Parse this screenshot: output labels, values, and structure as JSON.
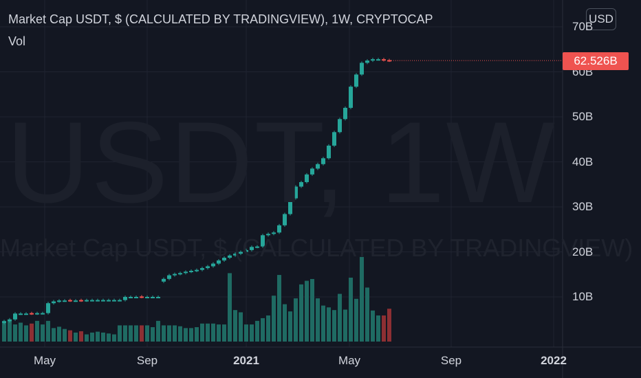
{
  "legend": {
    "title": "Market Cap USDT, $ (CALCULATED BY TRADINGVIEW), 1W, CRYPTOCAP",
    "volume_label": "Vol"
  },
  "watermark": {
    "symbol": "USDT, 1W",
    "description": "Market Cap USDT, $ (CALCULATED BY TRADINGVIEW)"
  },
  "currency_button": "USD",
  "last_price_label": "62.526B",
  "colors": {
    "background": "#131722",
    "up": "#26a69a",
    "down": "#ef5350",
    "vol_up": "#1f6b63",
    "vol_down": "#8d2f33",
    "grid": "#1f2330",
    "text": "#d1d4dc"
  },
  "chart_data": {
    "type": "candlestick",
    "interval": "1W",
    "y_axis": {
      "ticks": [
        "10B",
        "20B",
        "30B",
        "40B",
        "50B",
        "60B",
        "70B"
      ],
      "ylim": [
        0,
        72
      ],
      "unit": "B"
    },
    "x_axis": {
      "ticks": [
        {
          "label": "May",
          "bold": false
        },
        {
          "label": "Sep",
          "bold": false
        },
        {
          "label": "2021",
          "bold": true
        },
        {
          "label": "May",
          "bold": false
        },
        {
          "label": "Sep",
          "bold": false
        },
        {
          "label": "2022",
          "bold": true
        }
      ]
    },
    "grid": true,
    "close_values": [
      4.6,
      5.0,
      6.3,
      6.3,
      6.3,
      6.3,
      6.4,
      6.4,
      8.6,
      9.0,
      9.2,
      9.2,
      9.2,
      9.2,
      9.2,
      9.3,
      9.3,
      9.3,
      9.3,
      9.3,
      9.3,
      9.3,
      10.0,
      10.0,
      10.0,
      10.0,
      10.0,
      10.0,
      10.0,
      14.0,
      14.8,
      15.1,
      15.3,
      15.6,
      15.8,
      16.0,
      16.4,
      16.8,
      17.4,
      18.1,
      18.7,
      19.2,
      19.6,
      20.0,
      20.4,
      21.1,
      21.2,
      23.7,
      24.0,
      24.3,
      25.9,
      28.4,
      31.9,
      34.5,
      35.5,
      37.2,
      38.5,
      39.5,
      40.8,
      43.6,
      46.6,
      49.5,
      52.0,
      56.7,
      59.4,
      62.0,
      62.5,
      62.8,
      62.8,
      62.6,
      62.5
    ],
    "open_values": [
      4.2,
      4.6,
      5.0,
      6.3,
      6.3,
      6.4,
      6.3,
      6.4,
      6.4,
      8.6,
      9.0,
      9.2,
      9.3,
      9.2,
      9.3,
      9.2,
      9.3,
      9.3,
      9.3,
      9.3,
      9.3,
      9.3,
      9.3,
      10.0,
      10.0,
      10.1,
      10.0,
      10.0,
      10.0,
      13.4,
      14.0,
      14.8,
      15.1,
      15.3,
      15.6,
      15.8,
      16.0,
      16.4,
      16.8,
      17.4,
      18.1,
      18.7,
      19.2,
      19.6,
      20.0,
      20.4,
      21.1,
      21.2,
      23.7,
      24.0,
      24.3,
      25.9,
      28.4,
      31.9,
      34.5,
      35.5,
      37.2,
      38.5,
      39.5,
      40.8,
      43.6,
      46.6,
      49.5,
      52.0,
      56.7,
      59.4,
      62.0,
      62.5,
      62.8,
      62.8,
      62.6
    ],
    "volume_values": [
      4.6,
      4.6,
      3.8,
      4.2,
      3.6,
      4.0,
      4.6,
      3.8,
      4.6,
      3.0,
      3.3,
      2.8,
      2.5,
      2.0,
      2.3,
      1.6,
      2.0,
      2.2,
      2.0,
      1.8,
      1.6,
      3.6,
      3.6,
      3.6,
      3.6,
      3.6,
      3.6,
      3.2,
      4.6,
      3.6,
      3.6,
      3.6,
      3.4,
      3.0,
      3.0,
      3.2,
      4.0,
      4.0,
      4.0,
      3.8,
      3.8,
      15.2,
      7.0,
      6.5,
      3.8,
      3.8,
      4.6,
      5.2,
      5.8,
      10.2,
      14.8,
      8.3,
      6.7,
      9.6,
      12.7,
      13.5,
      13.9,
      9.6,
      8.0,
      7.6,
      7.0,
      10.6,
      7.1,
      14.2,
      9.5,
      18.8,
      12.0,
      6.9,
      5.8,
      5.8,
      7.3
    ]
  }
}
